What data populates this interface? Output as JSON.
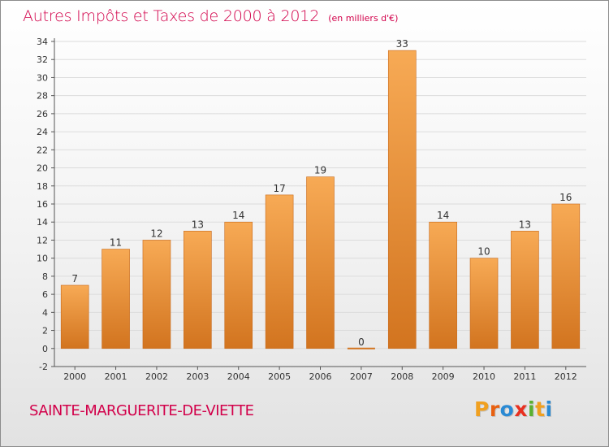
{
  "header": {
    "title": "Autres Impôts et Taxes de 2000 à 2012",
    "unit": "(en milliers d'€)"
  },
  "footer": {
    "town": "SAINTE-MARGUERITE-DE-VIETTE",
    "logo_letters": [
      "P",
      "r",
      "o",
      "x",
      "i",
      "t",
      "i"
    ],
    "logo_colors": [
      "#f0a020",
      "#e86010",
      "#2a8ad4",
      "#e83020",
      "#5ab030",
      "#f0a020",
      "#2a8ad4"
    ]
  },
  "colors": {
    "title": "#d2004a",
    "bar_top": "#f7aa55",
    "bar_bottom": "#d2741f",
    "grid": "#dcdcdc",
    "axis": "#555555"
  },
  "chart_data": {
    "type": "bar",
    "title": "Autres Impôts et Taxes de 2000 à 2012",
    "subtitle": "(en milliers d'€)",
    "categories": [
      "2000",
      "2001",
      "2002",
      "2003",
      "2004",
      "2005",
      "2006",
      "2007",
      "2008",
      "2009",
      "2010",
      "2011",
      "2012"
    ],
    "values": [
      7,
      11,
      12,
      13,
      14,
      17,
      19,
      0,
      33,
      14,
      10,
      13,
      16
    ],
    "ylim": [
      -2,
      34
    ],
    "yticks": [
      -2,
      0,
      2,
      4,
      6,
      8,
      10,
      12,
      14,
      16,
      18,
      20,
      22,
      24,
      26,
      28,
      30,
      32,
      34
    ],
    "grid": true,
    "xlabel": "",
    "ylabel": ""
  }
}
